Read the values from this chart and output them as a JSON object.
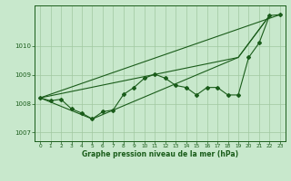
{
  "bg_color": "#c8e8cc",
  "line_color": "#1a5c1a",
  "grid_color": "#a0c8a0",
  "xlabel": "Graphe pression niveau de la mer (hPa)",
  "xlim": [
    -0.5,
    23.5
  ],
  "ylim": [
    1006.7,
    1011.4
  ],
  "yticks": [
    1007,
    1008,
    1009,
    1010
  ],
  "xticks": [
    0,
    1,
    2,
    3,
    4,
    5,
    6,
    7,
    8,
    9,
    10,
    11,
    12,
    13,
    14,
    15,
    16,
    17,
    18,
    19,
    20,
    21,
    22,
    23
  ],
  "main_line_x": [
    0,
    1,
    2,
    3,
    4,
    5,
    6,
    7,
    8,
    9,
    10,
    11,
    12,
    13,
    14,
    15,
    16,
    17,
    18,
    19,
    20,
    21,
    22,
    23
  ],
  "main_line_y": [
    1008.2,
    1008.1,
    1008.15,
    1007.82,
    1007.67,
    1007.47,
    1007.72,
    1007.78,
    1008.32,
    1008.56,
    1008.88,
    1009.02,
    1008.88,
    1008.63,
    1008.56,
    1008.3,
    1008.56,
    1008.56,
    1008.3,
    1008.3,
    1009.6,
    1010.1,
    1011.05,
    1011.08
  ],
  "trend_line": [
    [
      0,
      23
    ],
    [
      1008.2,
      1011.08
    ]
  ],
  "upper_line": [
    [
      0,
      19,
      22
    ],
    [
      1008.2,
      1009.6,
      1011.05
    ]
  ],
  "lower_line": [
    [
      0,
      5,
      19,
      22
    ],
    [
      1008.2,
      1007.47,
      1009.6,
      1011.05
    ]
  ]
}
